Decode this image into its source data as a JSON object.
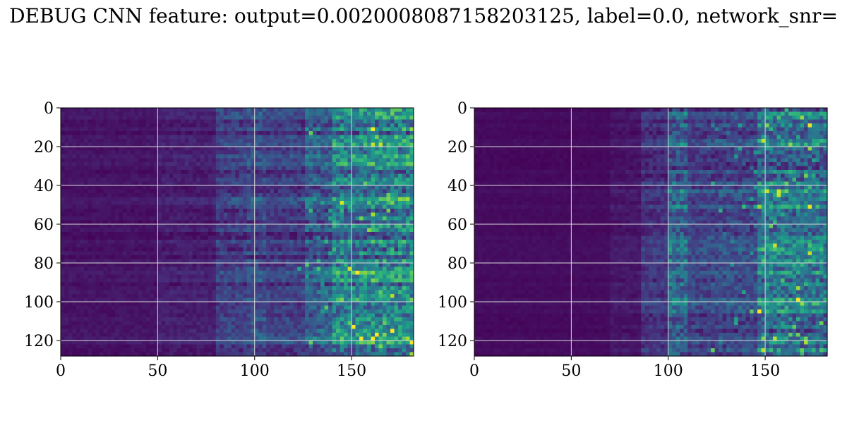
{
  "title": "DEBUG CNN feature: output=0.0020008087158203125, label=0.0, network_snr=",
  "chart_data": [
    {
      "type": "heatmap",
      "title": "",
      "xlabel": "",
      "ylabel": "",
      "xlim": [
        0,
        182
      ],
      "ylim": [
        128,
        0
      ],
      "xticks": [
        0,
        50,
        100,
        150
      ],
      "yticks": [
        0,
        20,
        40,
        60,
        80,
        100,
        120
      ],
      "grid": true,
      "colormap": "viridis",
      "rows": 128,
      "cols": 182,
      "band_edges": [
        0,
        50,
        80,
        95,
        105,
        125,
        140,
        160,
        182
      ],
      "band_intensity": [
        0.05,
        0.08,
        0.18,
        0.22,
        0.18,
        0.28,
        0.42,
        0.45
      ]
    },
    {
      "type": "heatmap",
      "title": "",
      "xlabel": "",
      "ylabel": "",
      "xlim": [
        0,
        182
      ],
      "ylim": [
        128,
        0
      ],
      "xticks": [
        0,
        50,
        100,
        150
      ],
      "yticks": [
        0,
        20,
        40,
        60,
        80,
        100,
        120
      ],
      "grid": true,
      "colormap": "viridis",
      "rows": 128,
      "cols": 182,
      "band_edges": [
        0,
        70,
        85,
        100,
        110,
        125,
        145,
        160,
        182
      ],
      "band_intensity": [
        0.03,
        0.06,
        0.15,
        0.32,
        0.2,
        0.22,
        0.4,
        0.38
      ]
    }
  ],
  "colors": {
    "grid": "#d8d8d8",
    "axes": "#000000",
    "viridis": [
      "#440154",
      "#482878",
      "#3e4989",
      "#31688e",
      "#26828e",
      "#1f9e89",
      "#35b779",
      "#6ece58",
      "#b5de2b",
      "#fde725"
    ]
  }
}
